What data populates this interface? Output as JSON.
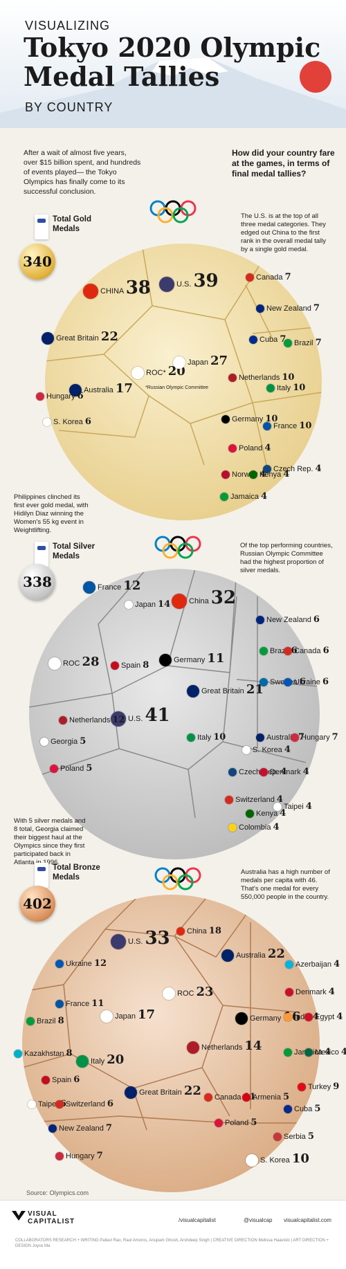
{
  "header": {
    "pre_title": "VISUALIZING",
    "title_line1": "Tokyo 2020 Olympic",
    "title_line2": "Medal Tallies",
    "sub_title": "BY COUNTRY"
  },
  "intro": {
    "left": "After a wait of almost five years, over $15 billion spent, and hundreds of events played— the Tokyo Olympics has finally come to its successful conclusion.",
    "right": "How did your country fare at the games, in terms of final medal tallies?"
  },
  "gold": {
    "label": "Total Gold Medals",
    "total": "340",
    "note": "The U.S. is at the top of all three medal categories. They edged out China to the first rank in the overall medal tally by a single gold medal.",
    "side_note": "Philippines clinched its first ever gold medal, with Hidilyn Diaz winning the Women's 55 kg event in Weightlifting.",
    "countries": [
      {
        "name": "CHINA",
        "value": "38",
        "flag": "#de2910"
      },
      {
        "name": "U.S.",
        "value": "39",
        "flag": "#3c3b6e"
      },
      {
        "name": "Great Britain",
        "value": "22",
        "flag": "#012169"
      },
      {
        "name": "ROC*",
        "value": "20",
        "flag": "#ffffff"
      },
      {
        "name": "Japan",
        "value": "27",
        "flag": "#ffffff"
      },
      {
        "name": "Australia",
        "value": "17",
        "flag": "#012169"
      },
      {
        "name": "Netherlands",
        "value": "10",
        "flag": "#ae1c28"
      },
      {
        "name": "Italy",
        "value": "10",
        "flag": "#009246"
      },
      {
        "name": "Germany",
        "value": "10",
        "flag": "#000000"
      },
      {
        "name": "France",
        "value": "10",
        "flag": "#0055a4"
      },
      {
        "name": "Canada",
        "value": "7",
        "flag": "#d52b1e"
      },
      {
        "name": "New Zealand",
        "value": "7",
        "flag": "#00247d"
      },
      {
        "name": "Cuba",
        "value": "7",
        "flag": "#002a8f"
      },
      {
        "name": "Brazil",
        "value": "7",
        "flag": "#009c3b"
      },
      {
        "name": "Hungary",
        "value": "6",
        "flag": "#cd2a3e"
      },
      {
        "name": "S. Korea",
        "value": "6",
        "flag": "#ffffff"
      },
      {
        "name": "Poland",
        "value": "4",
        "flag": "#dc143c"
      },
      {
        "name": "Norway",
        "value": "4",
        "flag": "#ba0c2f"
      },
      {
        "name": "Kenya",
        "value": "4",
        "flag": "#006600"
      },
      {
        "name": "Czech Rep.",
        "value": "4",
        "flag": "#11457e"
      },
      {
        "name": "Jamaica",
        "value": "4",
        "flag": "#009b3a"
      }
    ],
    "roc_note": "*Russian Olympic Committee"
  },
  "silver": {
    "label": "Total Silver Medals",
    "total": "338",
    "note": "Of the top performing countries, Russian Olympic Committee had the highest proportion of silver medals.",
    "side_note": "With 5 silver medals and 8 total, Georgia claimed their biggest haul at the Olympics since they first participated back in Atlanta in 1996.",
    "countries": [
      {
        "name": "France",
        "value": "12",
        "flag": "#0055a4"
      },
      {
        "name": "Japan",
        "value": "14",
        "flag": "#ffffff"
      },
      {
        "name": "China",
        "value": "32",
        "flag": "#de2910"
      },
      {
        "name": "ROC",
        "value": "28",
        "flag": "#ffffff"
      },
      {
        "name": "Spain",
        "value": "8",
        "flag": "#c60b1e"
      },
      {
        "name": "Germany",
        "value": "11",
        "flag": "#000000"
      },
      {
        "name": "Great Britain",
        "value": "21",
        "flag": "#012169"
      },
      {
        "name": "U.S.",
        "value": "41",
        "flag": "#3c3b6e"
      },
      {
        "name": "Netherlands",
        "value": "12",
        "flag": "#ae1c28"
      },
      {
        "name": "Italy",
        "value": "10",
        "flag": "#009246"
      },
      {
        "name": "New Zealand",
        "value": "6",
        "flag": "#00247d"
      },
      {
        "name": "Brazil",
        "value": "6",
        "flag": "#009c3b"
      },
      {
        "name": "Canada",
        "value": "6",
        "flag": "#d52b1e"
      },
      {
        "name": "Sweden",
        "value": "6",
        "flag": "#006aa7"
      },
      {
        "name": "Ukraine",
        "value": "6",
        "flag": "#0057b7"
      },
      {
        "name": "Australia",
        "value": "7",
        "flag": "#012169"
      },
      {
        "name": "Hungary",
        "value": "7",
        "flag": "#cd2a3e"
      },
      {
        "name": "Georgia",
        "value": "5",
        "flag": "#ffffff"
      },
      {
        "name": "Poland",
        "value": "5",
        "flag": "#dc143c"
      },
      {
        "name": "S. Korea",
        "value": "4",
        "flag": "#ffffff"
      },
      {
        "name": "Czech Rep.",
        "value": "4",
        "flag": "#11457e"
      },
      {
        "name": "Denmark",
        "value": "4",
        "flag": "#c8102e"
      },
      {
        "name": "Switzerland",
        "value": "4",
        "flag": "#d52b1e"
      },
      {
        "name": "Taipei",
        "value": "4",
        "flag": "#ffffff"
      },
      {
        "name": "Kenya",
        "value": "4",
        "flag": "#006600"
      },
      {
        "name": "Colombia",
        "value": "4",
        "flag": "#fcd116"
      }
    ]
  },
  "bronze": {
    "label": "Total Bronze Medals",
    "total": "402",
    "note": "Australia has a high number of medals per capita with 46. That's one medal for every 550,000 people in the country.",
    "countries": [
      {
        "name": "China",
        "value": "18",
        "flag": "#de2910"
      },
      {
        "name": "U.S.",
        "value": "33",
        "flag": "#3c3b6e"
      },
      {
        "name": "Ukraine",
        "value": "12",
        "flag": "#0057b7"
      },
      {
        "name": "Australia",
        "value": "22",
        "flag": "#012169"
      },
      {
        "name": "Azerbaijan",
        "value": "4",
        "flag": "#00b5e2"
      },
      {
        "name": "France",
        "value": "11",
        "flag": "#0055a4"
      },
      {
        "name": "ROC",
        "value": "23",
        "flag": "#ffffff"
      },
      {
        "name": "Denmark",
        "value": "4",
        "flag": "#c8102e"
      },
      {
        "name": "Brazil",
        "value": "8",
        "flag": "#009c3b"
      },
      {
        "name": "Japan",
        "value": "17",
        "flag": "#ffffff"
      },
      {
        "name": "Germany",
        "value": "16",
        "flag": "#000000"
      },
      {
        "name": "India",
        "value": "4",
        "flag": "#ff9933"
      },
      {
        "name": "Egypt",
        "value": "4",
        "flag": "#ce1126"
      },
      {
        "name": "Kazakhstan",
        "value": "8",
        "flag": "#00afca"
      },
      {
        "name": "Netherlands",
        "value": "14",
        "flag": "#ae1c28"
      },
      {
        "name": "Jamaica",
        "value": "4",
        "flag": "#009b3a"
      },
      {
        "name": "Mexico",
        "value": "4",
        "flag": "#006847"
      },
      {
        "name": "Italy",
        "value": "20",
        "flag": "#009246"
      },
      {
        "name": "Spain",
        "value": "6",
        "flag": "#c60b1e"
      },
      {
        "name": "Great Britain",
        "value": "22",
        "flag": "#012169"
      },
      {
        "name": "Canada",
        "value": "11",
        "flag": "#d52b1e"
      },
      {
        "name": "Turkey",
        "value": "9",
        "flag": "#e30a17"
      },
      {
        "name": "Taipei",
        "value": "6",
        "flag": "#ffffff"
      },
      {
        "name": "Switzerland",
        "value": "6",
        "flag": "#d52b1e"
      },
      {
        "name": "Armenia",
        "value": "5",
        "flag": "#d90012"
      },
      {
        "name": "Cuba",
        "value": "5",
        "flag": "#002a8f"
      },
      {
        "name": "Poland",
        "value": "5",
        "flag": "#dc143c"
      },
      {
        "name": "New Zealand",
        "value": "7",
        "flag": "#00247d"
      },
      {
        "name": "Serbia",
        "value": "5",
        "flag": "#c6363c"
      },
      {
        "name": "Hungary",
        "value": "7",
        "flag": "#cd2a3e"
      },
      {
        "name": "S. Korea",
        "value": "10",
        "flag": "#ffffff"
      }
    ]
  },
  "source": "Source: Olympics.com",
  "footer": {
    "brand": "VISUAL CAPITALIST",
    "social1": "/visualcapitalist",
    "social2": "@visualcap",
    "social3": "visualcapitalist.com",
    "credits": "COLLABORATORS  RESEARCH + WRITING Pallavi Rao, Raul Amoros, Anupam Ghosh, Arshdeep Singh  |  CREATIVE DIRECTION Melissa Haavisto  |  ART DIRECTION + DESIGN Joyce Ma"
  },
  "colors": {
    "gold": "#e8d08f",
    "silver": "#b9b9b9",
    "bronze": "#d9a37b"
  }
}
